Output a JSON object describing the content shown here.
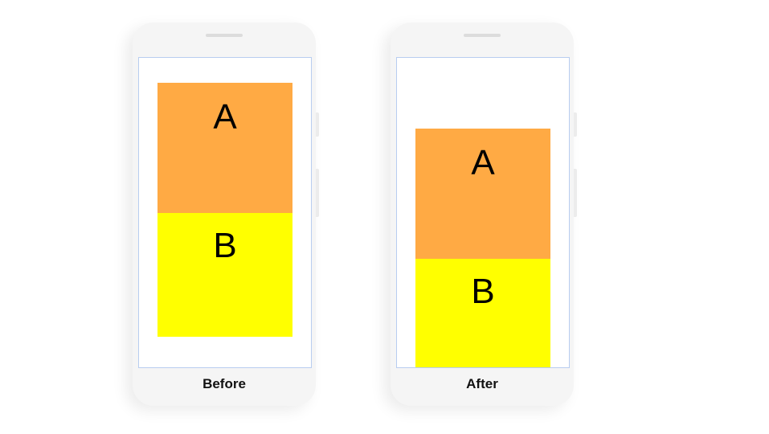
{
  "panels": [
    {
      "caption": "Before",
      "box_a": "A",
      "box_b": "B"
    },
    {
      "caption": "After",
      "box_a": "A",
      "box_b": "B"
    }
  ],
  "colors": {
    "box_a": "#ffaa44",
    "box_b": "#ffff00",
    "screen_border": "#b8cdf0"
  }
}
